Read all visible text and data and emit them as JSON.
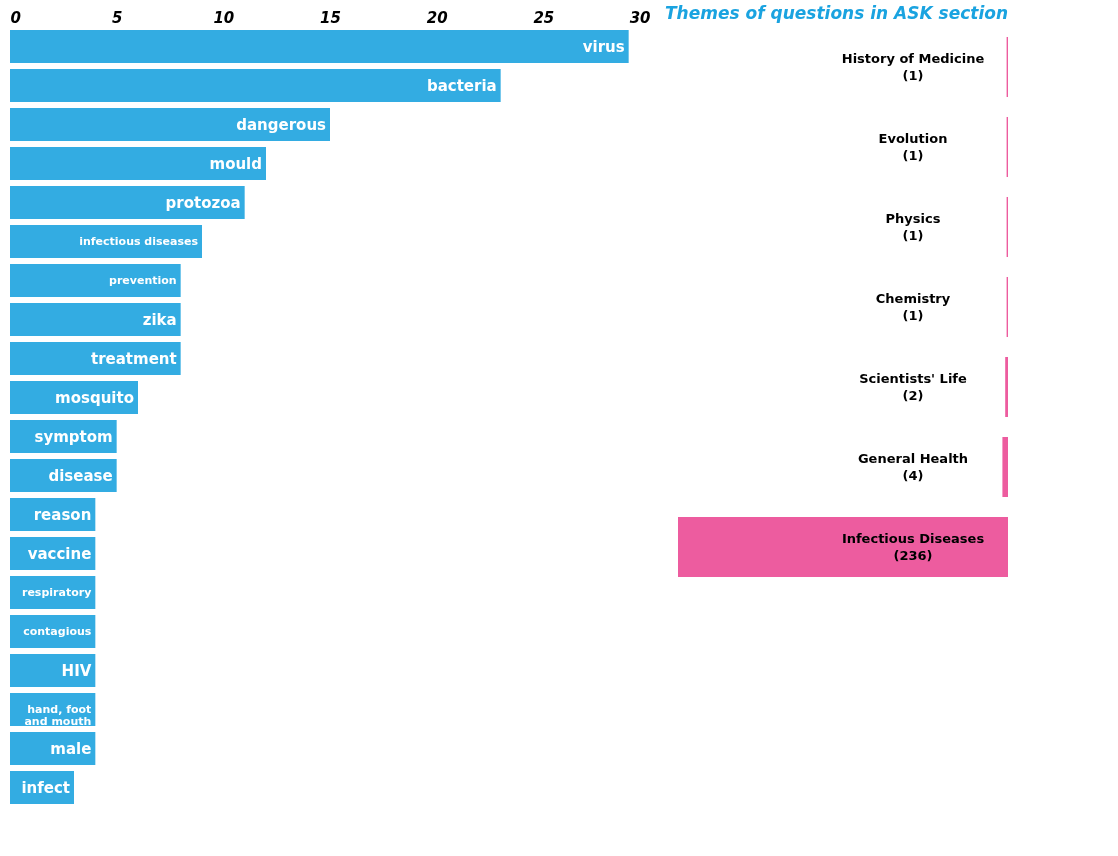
{
  "chart_data": [
    {
      "type": "bar",
      "orientation": "horizontal",
      "categories": [
        "virus",
        "bacteria",
        "dangerous",
        "mould",
        "protozoa",
        "infectious diseases",
        "prevention",
        "zika",
        "treatment",
        "mosquito",
        "symptom",
        "disease",
        "reason",
        "vaccine",
        "respiratory",
        "contagious",
        "HIV",
        "hand, foot and mouth",
        "male",
        "infect"
      ],
      "values": [
        29,
        23,
        15,
        12,
        11,
        9,
        8,
        8,
        8,
        6,
        5,
        5,
        4,
        4,
        4,
        4,
        4,
        4,
        4,
        3
      ],
      "color": "#33ace2",
      "xlim": [
        0,
        30
      ],
      "xticks": [
        0,
        5,
        10,
        15,
        20,
        25,
        30
      ],
      "tick_labels": "x",
      "grid": false
    },
    {
      "type": "other",
      "title": "Themes of questions in ASK section",
      "categories": [
        "History of Medicine",
        "Evolution",
        "Physics",
        "Chemistry",
        "Scientists' Life",
        "General Health",
        "Infectious Diseases"
      ],
      "values": [
        1,
        1,
        1,
        1,
        2,
        4,
        236
      ],
      "value_labels": [
        "(1)",
        "(1)",
        "(1)",
        "(1)",
        "(2)",
        "(4)",
        "(236)"
      ],
      "color": "#ed5c9f"
    }
  ]
}
